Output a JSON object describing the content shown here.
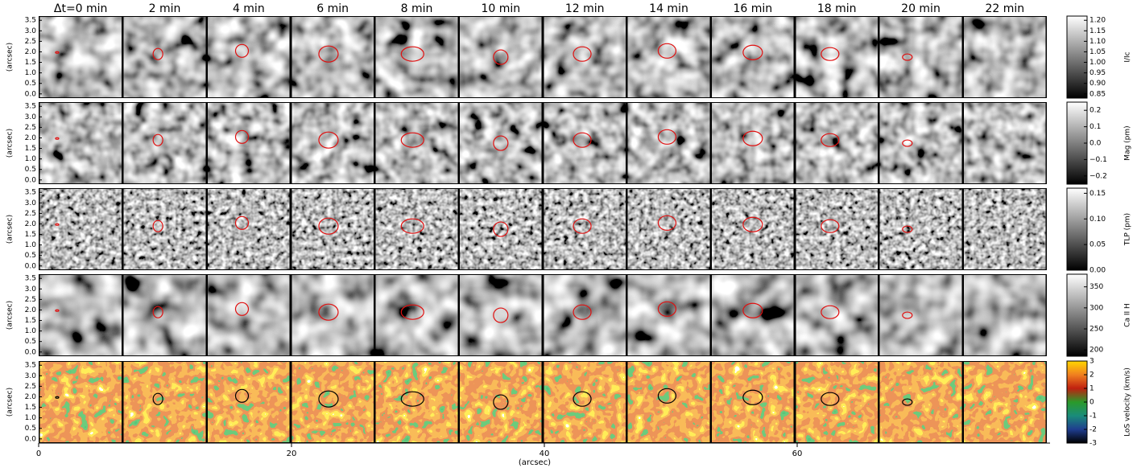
{
  "chart_data": {
    "type": "image-grid",
    "columns": [
      "Δt=0 min",
      "2 min",
      "4 min",
      "6 min",
      "8 min",
      "10 min",
      "12 min",
      "14 min",
      "16 min",
      "18 min",
      "20 min",
      "22 min"
    ],
    "xlabel": "(arcsec)",
    "xlim": [
      0,
      80
    ],
    "xticks": [
      0,
      20,
      40,
      60
    ],
    "ylim": [
      -0.2,
      3.7
    ],
    "yticks": [
      {
        "value": 0,
        "label": "0.0"
      },
      {
        "value": 0.5,
        "label": "0.5"
      },
      {
        "value": 1,
        "label": "1.0"
      },
      {
        "value": 1.5,
        "label": "1.5"
      },
      {
        "value": 2,
        "label": "2.0"
      },
      {
        "value": 2.5,
        "label": "2.5"
      },
      {
        "value": 3,
        "label": "3.0"
      },
      {
        "value": 3.5,
        "label": "3.5"
      }
    ],
    "rows": [
      {
        "ylabel": "(arcsec)",
        "colorbar": {
          "label": "I/Ic",
          "lim": [
            0.83,
            1.22
          ],
          "colors": [
            "#000000",
            "#ffffff"
          ],
          "ticks": [
            {
              "value": 0.85,
              "label": "0.85"
            },
            {
              "value": 0.9,
              "label": "0.90"
            },
            {
              "value": 0.95,
              "label": "0.95"
            },
            {
              "value": 1.0,
              "label": "1.00"
            },
            {
              "value": 1.05,
              "label": "1.05"
            },
            {
              "value": 1.1,
              "label": "1.10"
            },
            {
              "value": 1.15,
              "label": "1.15"
            },
            {
              "value": 1.2,
              "label": "1.20"
            }
          ]
        }
      },
      {
        "ylabel": "(arcsec)",
        "colorbar": {
          "label": "Mag (pm)",
          "lim": [
            -0.25,
            0.25
          ],
          "colors": [
            "#000000",
            "#ffffff"
          ],
          "ticks": [
            {
              "value": -0.2,
              "label": "−0.2"
            },
            {
              "value": -0.1,
              "label": "−0.1"
            },
            {
              "value": 0,
              "label": "0.0"
            },
            {
              "value": 0.1,
              "label": "0.1"
            },
            {
              "value": 0.2,
              "label": "0.2"
            }
          ]
        }
      },
      {
        "ylabel": "(arcsec)",
        "colorbar": {
          "label": "TLP (pm)",
          "lim": [
            0,
            0.16
          ],
          "colors": [
            "#000000",
            "#ffffff"
          ],
          "ticks": [
            {
              "value": 0,
              "label": "0.00"
            },
            {
              "value": 0.05,
              "label": "0.05"
            },
            {
              "value": 0.1,
              "label": "0.10"
            },
            {
              "value": 0.15,
              "label": "0.15"
            }
          ]
        }
      },
      {
        "ylabel": "(arcsec)",
        "colorbar": {
          "label": "Ca II H",
          "lim": [
            185,
            380
          ],
          "colors": [
            "#000000",
            "#ffffff"
          ],
          "ticks": [
            200,
            250,
            300,
            350
          ]
        }
      },
      {
        "ylabel": "(arcsec)",
        "colorbar": {
          "label": "LoS velocity (km/s)",
          "lim": [
            -3,
            3
          ],
          "colors": [
            "#000000",
            "#1f3d8f",
            "#1a8c7a",
            "#2a9a2a",
            "#c02010",
            "#f08020",
            "#ffd700"
          ],
          "ticks": [
            -3,
            -2,
            -1,
            0,
            1,
            2,
            3
          ]
        }
      }
    ]
  }
}
